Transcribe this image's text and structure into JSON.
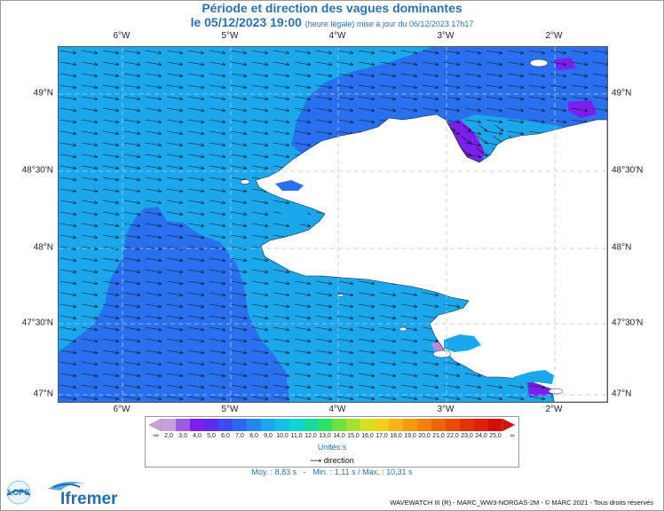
{
  "header": {
    "title": "Période et direction des vagues dominantes",
    "date": "le 05/12/2023 19:00",
    "note": "(heure légale) mise à jour du 06/12/2023 17h17"
  },
  "map": {
    "lon_ticks": [
      "6°W",
      "5°W",
      "4°W",
      "3°W",
      "2°W"
    ],
    "lat_ticks": [
      "49°N",
      "48°30'N",
      "48°N",
      "47°30'N",
      "47°N"
    ],
    "extent": {
      "lon_min": -6.75,
      "lon_max": -1.5,
      "lat_min": 46.97,
      "lat_max": 49.32
    },
    "colors": {
      "land": "#ffffff",
      "sea_main": "#1aa7ec",
      "sea_deep": "#2870f0",
      "violet": "#7a1ff0",
      "lilac": "#b88cd8",
      "gridline": "#b9c4e8",
      "arrow": "#111111"
    }
  },
  "legend": {
    "colorbar_labels": [
      "2,0",
      "3,0",
      "4,0",
      "5,0",
      "6,0",
      "7,0",
      "8,0",
      "9,0",
      "10,0",
      "11,0",
      "12,0",
      "13,0",
      "14,0",
      "15,0",
      "16,0",
      "17,0",
      "18,0",
      "19,0",
      "20,0",
      "21,0",
      "22,0",
      "23,0",
      "24,0",
      "25,0"
    ],
    "low_end": "-∞",
    "high_end": "∞",
    "units": "Unités:s",
    "direction_label": "direction",
    "colorbar_colors": [
      "#c8a0d8",
      "#9c5ce6",
      "#7a1ff0",
      "#5a2cf0",
      "#3a4cf4",
      "#2a6af2",
      "#2288ee",
      "#1aa7ec",
      "#12c2e6",
      "#10d4d0",
      "#14dca0",
      "#30e060",
      "#70e040",
      "#a8e030",
      "#d8e020",
      "#f0d018",
      "#f4b414",
      "#f49a10",
      "#f2800c",
      "#ee660a",
      "#ea4c08",
      "#e43208",
      "#de2008",
      "#d61008"
    ]
  },
  "stats": {
    "moy": "Moy. : 8,83 s",
    "min": "Min. : 1,11 s",
    "max": "Max. : 10,31 s",
    "sep": "-",
    "sep2": "/"
  },
  "footer": {
    "credit": "WAVEWATCH III (R) - MARC_WW3-NORGAS-2M - © MARC 2021 - Tous droits réservés",
    "logo_left": "LOPS",
    "logo_right": "Ifremer"
  }
}
